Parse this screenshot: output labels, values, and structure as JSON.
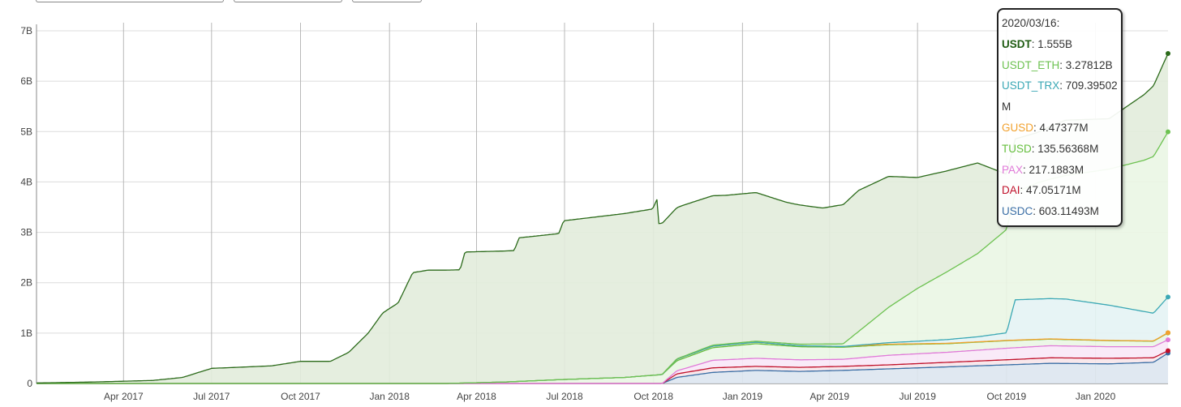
{
  "controls": [
    "",
    "",
    ""
  ],
  "chart_data": {
    "type": "area",
    "title": "",
    "xlabel": "",
    "ylabel": "",
    "ylim": [
      0,
      7000000000
    ],
    "yticks": [
      "0",
      "1B",
      "2B",
      "3B",
      "4B",
      "5B",
      "6B",
      "7B"
    ],
    "xticks": [
      "Apr 2017",
      "Jul 2017",
      "Oct 2017",
      "Jan 2018",
      "Apr 2018",
      "Jul 2018",
      "Oct 2018",
      "Jan 2019",
      "Apr 2019",
      "Jul 2019",
      "Oct 2019",
      "Jan 2020"
    ],
    "xtick_dates": [
      "2017-04-01",
      "2017-07-01",
      "2017-10-01",
      "2018-01-01",
      "2018-04-01",
      "2018-07-01",
      "2018-10-01",
      "2019-01-01",
      "2019-04-01",
      "2019-07-01",
      "2019-10-01",
      "2020-01-01"
    ],
    "xlim": [
      "2017-01-01",
      "2020-03-16"
    ],
    "grid": true,
    "stacked": true,
    "series": [
      {
        "name": "USDC",
        "color": "#3a6ea5",
        "fill": "#dde6f0",
        "points": [
          [
            "2018-10-10",
            0
          ],
          [
            "2018-10-25",
            120000000
          ],
          [
            "2018-12-01",
            220000000
          ],
          [
            "2019-01-15",
            260000000
          ],
          [
            "2019-03-01",
            240000000
          ],
          [
            "2019-04-15",
            260000000
          ],
          [
            "2019-06-01",
            290000000
          ],
          [
            "2019-08-01",
            330000000
          ],
          [
            "2019-10-01",
            370000000
          ],
          [
            "2019-11-15",
            400000000
          ],
          [
            "2020-01-15",
            390000000
          ],
          [
            "2020-03-01",
            420000000
          ],
          [
            "2020-03-16",
            603114930
          ]
        ]
      },
      {
        "name": "DAI",
        "color": "#c0102a",
        "fill": "#f7e6ea",
        "points": [
          [
            "2018-10-10",
            0
          ],
          [
            "2018-10-25",
            70000000
          ],
          [
            "2018-12-01",
            90000000
          ],
          [
            "2019-01-15",
            80000000
          ],
          [
            "2019-03-01",
            80000000
          ],
          [
            "2019-04-15",
            80000000
          ],
          [
            "2019-06-01",
            80000000
          ],
          [
            "2019-08-01",
            90000000
          ],
          [
            "2019-10-01",
            100000000
          ],
          [
            "2019-11-15",
            110000000
          ],
          [
            "2020-01-15",
            110000000
          ],
          [
            "2020-03-01",
            90000000
          ],
          [
            "2020-03-16",
            47051710
          ]
        ]
      },
      {
        "name": "PAX",
        "color": "#e07ad8",
        "fill": "#f8e8f7",
        "points": [
          [
            "2018-10-10",
            0
          ],
          [
            "2018-10-25",
            60000000
          ],
          [
            "2018-12-01",
            150000000
          ],
          [
            "2019-01-15",
            160000000
          ],
          [
            "2019-03-01",
            150000000
          ],
          [
            "2019-04-15",
            140000000
          ],
          [
            "2019-06-01",
            190000000
          ],
          [
            "2019-08-01",
            200000000
          ],
          [
            "2019-10-01",
            230000000
          ],
          [
            "2019-11-15",
            240000000
          ],
          [
            "2020-01-15",
            230000000
          ],
          [
            "2020-03-01",
            220000000
          ],
          [
            "2020-03-16",
            217188300
          ]
        ]
      },
      {
        "name": "TUSD",
        "color": "#64be3c",
        "fill": "#eaf6e4",
        "points": [
          [
            "2018-03-01",
            0
          ],
          [
            "2018-05-01",
            30000000
          ],
          [
            "2018-07-01",
            80000000
          ],
          [
            "2018-09-01",
            120000000
          ],
          [
            "2018-10-25",
            200000000
          ],
          [
            "2018-12-01",
            250000000
          ],
          [
            "2019-01-15",
            290000000
          ],
          [
            "2019-03-01",
            260000000
          ],
          [
            "2019-04-15",
            240000000
          ],
          [
            "2019-06-01",
            210000000
          ],
          [
            "2019-08-01",
            170000000
          ],
          [
            "2019-10-01",
            150000000
          ],
          [
            "2019-11-15",
            130000000
          ],
          [
            "2020-01-15",
            120000000
          ],
          [
            "2020-03-01",
            110000000
          ],
          [
            "2020-03-16",
            135563680
          ]
        ]
      },
      {
        "name": "GUSD",
        "color": "#f2a12d",
        "fill": "#fdf0dd",
        "points": [
          [
            "2018-10-10",
            0
          ],
          [
            "2018-10-25",
            30000000
          ],
          [
            "2018-12-01",
            30000000
          ],
          [
            "2019-01-15",
            30000000
          ],
          [
            "2019-03-01",
            20000000
          ],
          [
            "2019-06-01",
            10000000
          ],
          [
            "2019-10-01",
            5000000
          ],
          [
            "2020-03-16",
            4473770
          ]
        ]
      },
      {
        "name": "USDT_TRX",
        "color": "#3ba8b5",
        "fill": "#e4f3f4",
        "points": [
          [
            "2019-04-15",
            0
          ],
          [
            "2019-05-01",
            10000000
          ],
          [
            "2019-07-01",
            50000000
          ],
          [
            "2019-09-01",
            100000000
          ],
          [
            "2019-10-01",
            150000000
          ],
          [
            "2019-10-10",
            800000000
          ],
          [
            "2019-12-01",
            800000000
          ],
          [
            "2020-01-15",
            700000000
          ],
          [
            "2020-03-01",
            550000000
          ],
          [
            "2020-03-16",
            709395020
          ]
        ]
      },
      {
        "name": "USDT_ETH",
        "color": "#6dc251",
        "fill": "#eaf6e4",
        "points": [
          [
            "2018-03-01",
            0
          ],
          [
            "2018-10-01",
            0
          ],
          [
            "2018-12-01",
            20000000
          ],
          [
            "2019-01-15",
            20000000
          ],
          [
            "2019-03-01",
            30000000
          ],
          [
            "2019-04-15",
            50000000
          ],
          [
            "2019-06-01",
            700000000
          ],
          [
            "2019-07-01",
            1050000000
          ],
          [
            "2019-08-01",
            1350000000
          ],
          [
            "2019-09-01",
            1650000000
          ],
          [
            "2019-10-01",
            2050000000
          ],
          [
            "2019-11-01",
            2300000000
          ],
          [
            "2019-12-01",
            2450000000
          ],
          [
            "2020-01-15",
            2700000000
          ],
          [
            "2020-02-20",
            3000000000
          ],
          [
            "2020-03-16",
            3278120000
          ]
        ]
      },
      {
        "name": "USDT",
        "color": "#2b6a1a",
        "fill": "#e2ecdc",
        "points": [
          [
            "2017-01-01",
            10000000
          ],
          [
            "2017-03-01",
            30000000
          ],
          [
            "2017-05-01",
            60000000
          ],
          [
            "2017-06-01",
            120000000
          ],
          [
            "2017-07-01",
            300000000
          ],
          [
            "2017-09-01",
            350000000
          ],
          [
            "2017-10-01",
            440000000
          ],
          [
            "2017-11-01",
            440000000
          ],
          [
            "2017-11-20",
            620000000
          ],
          [
            "2017-12-10",
            1000000000
          ],
          [
            "2017-12-25",
            1400000000
          ],
          [
            "2018-01-10",
            1600000000
          ],
          [
            "2018-01-25",
            2200000000
          ],
          [
            "2018-02-10",
            2250000000
          ],
          [
            "2018-03-15",
            2250000000
          ],
          [
            "2018-03-20",
            2600000000
          ],
          [
            "2018-05-10",
            2600000000
          ],
          [
            "2018-05-15",
            2850000000
          ],
          [
            "2018-06-25",
            2900000000
          ],
          [
            "2018-06-30",
            3150000000
          ],
          [
            "2018-09-30",
            3300000000
          ],
          [
            "2018-10-05",
            3500000000
          ],
          [
            "2018-10-06",
            3000000000
          ],
          [
            "2018-11-01",
            3000000000
          ],
          [
            "2018-12-15",
            2950000000
          ],
          [
            "2019-01-15",
            2950000000
          ],
          [
            "2019-02-15",
            2800000000
          ],
          [
            "2019-03-25",
            2700000000
          ],
          [
            "2019-04-10",
            2750000000
          ],
          [
            "2019-05-01",
            2800000000
          ],
          [
            "2019-06-01",
            2600000000
          ],
          [
            "2019-07-01",
            2200000000
          ],
          [
            "2019-08-01",
            2000000000
          ],
          [
            "2019-09-01",
            1800000000
          ],
          [
            "2019-10-01",
            1100000000
          ],
          [
            "2019-11-01",
            1000000000
          ],
          [
            "2019-12-01",
            1100000000
          ],
          [
            "2020-01-15",
            1000000000
          ],
          [
            "2020-02-20",
            1300000000
          ],
          [
            "2020-03-16",
            1555000000
          ]
        ]
      }
    ]
  },
  "tooltip": {
    "date": "2020/03/16:",
    "rows": [
      {
        "label": "USDT",
        "value": ": 1.555B",
        "color": "#1f5c12",
        "bold": true
      },
      {
        "label": "USDT_ETH",
        "value": ": 3.27812B",
        "color": "#6dc251",
        "bold": false
      },
      {
        "label": "USDT_TRX",
        "value": ": 709.39502M",
        "color": "#3ba8b5",
        "bold": false
      },
      {
        "label": "GUSD",
        "value": ": 4.47377M",
        "color": "#f2a12d",
        "bold": false
      },
      {
        "label": "TUSD",
        "value": ": 135.56368M",
        "color": "#64be3c",
        "bold": false
      },
      {
        "label": "PAX",
        "value": ": 217.1883M",
        "color": "#e07ad8",
        "bold": false
      },
      {
        "label": "DAI",
        "value": ": 47.05171M",
        "color": "#c0102a",
        "bold": false
      },
      {
        "label": "USDC",
        "value": ": 603.11493M",
        "color": "#3a6ea5",
        "bold": false
      }
    ]
  }
}
